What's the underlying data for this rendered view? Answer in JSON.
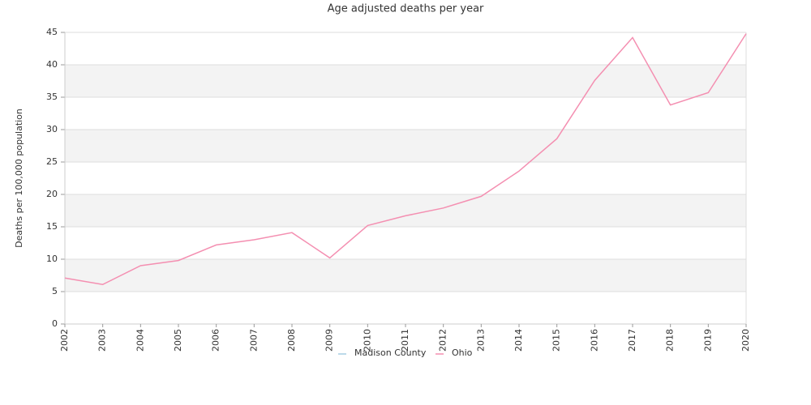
{
  "chart_data": {
    "type": "line",
    "title": "Age adjusted deaths per year",
    "ylabel": "Deaths per 100,000 population",
    "categories": [
      "2002",
      "2003",
      "2004",
      "2005",
      "2006",
      "2007",
      "2008",
      "2009",
      "2010",
      "2011",
      "2012",
      "2013",
      "2014",
      "2015",
      "2016",
      "2017",
      "2018",
      "2019",
      "2020"
    ],
    "series": [
      {
        "name": "Madison County",
        "color": "#a6cee3",
        "values": [
          null,
          null,
          null,
          null,
          null,
          null,
          null,
          null,
          null,
          null,
          null,
          null,
          null,
          null,
          null,
          null,
          null,
          null,
          null
        ]
      },
      {
        "name": "Ohio",
        "color": "#f48fb1",
        "values": [
          7.1,
          6.1,
          9.0,
          9.8,
          12.2,
          13.0,
          14.1,
          10.2,
          15.2,
          16.7,
          17.9,
          19.7,
          23.6,
          28.6,
          37.6,
          44.2,
          33.8,
          35.7,
          44.8
        ]
      }
    ],
    "ylim": [
      0,
      45
    ],
    "yticks": [
      0,
      5,
      10,
      15,
      20,
      25,
      30,
      35,
      40,
      45
    ],
    "grid": true,
    "legend": "bottom"
  }
}
